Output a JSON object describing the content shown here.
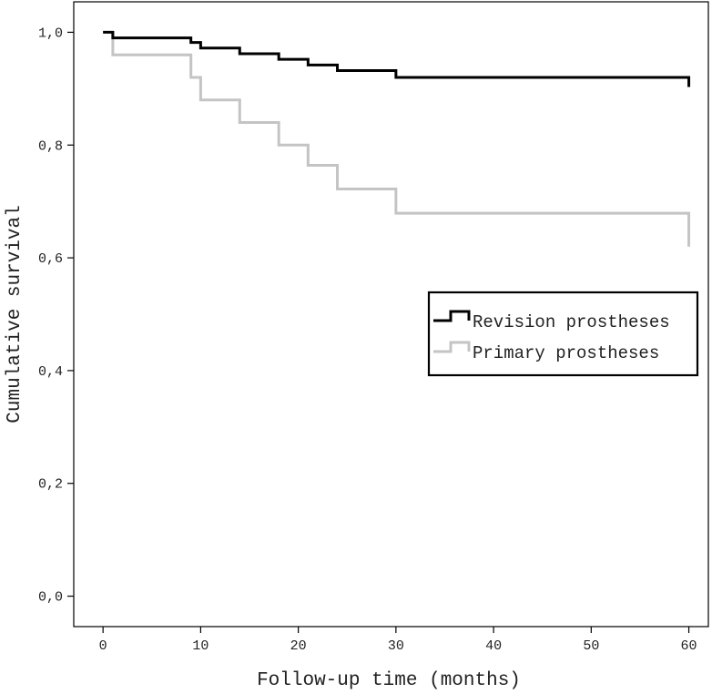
{
  "chart_data": {
    "type": "line",
    "step": true,
    "title": "",
    "xlabel": "Follow-up time (months)",
    "ylabel": "Cumulative survival",
    "xlim": [
      -3,
      62
    ],
    "ylim": [
      -0.054,
      1.054
    ],
    "x_ticks": [
      0,
      10,
      20,
      30,
      40,
      50,
      60
    ],
    "x_tick_labels": [
      "0",
      "10",
      "20",
      "30",
      "40",
      "50",
      "60"
    ],
    "y_ticks": [
      0.0,
      0.2,
      0.4,
      0.6,
      0.8,
      1.0
    ],
    "y_tick_labels": [
      "0,0",
      "0,2",
      "0,4",
      "0,6",
      "0,8",
      "1,0"
    ],
    "grid": false,
    "legend_position": "right",
    "series": [
      {
        "name": "Revision prostheses",
        "color": "#000000",
        "points": [
          [
            0,
            1.0
          ],
          [
            1,
            0.99
          ],
          [
            9,
            0.982
          ],
          [
            10,
            0.972
          ],
          [
            14,
            0.962
          ],
          [
            18,
            0.952
          ],
          [
            21,
            0.942
          ],
          [
            24,
            0.932
          ],
          [
            30,
            0.92
          ],
          [
            60,
            0.903
          ]
        ]
      },
      {
        "name": "Primary prostheses",
        "color": "#c4c4c4",
        "points": [
          [
            0,
            1.0
          ],
          [
            1,
            0.96
          ],
          [
            9,
            0.92
          ],
          [
            10,
            0.88
          ],
          [
            14,
            0.84
          ],
          [
            18,
            0.8
          ],
          [
            21,
            0.764
          ],
          [
            24,
            0.722
          ],
          [
            30,
            0.679
          ],
          [
            60,
            0.62
          ]
        ]
      }
    ]
  }
}
